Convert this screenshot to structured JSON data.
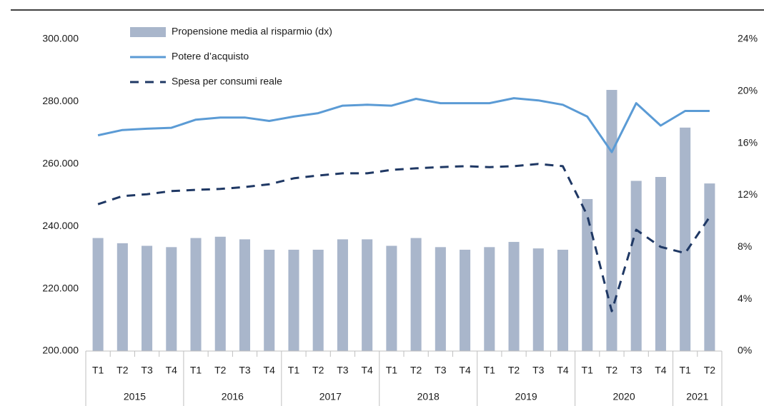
{
  "chart_data": {
    "type": "bar-line",
    "categories": [
      "T1",
      "T2",
      "T3",
      "T4",
      "T1",
      "T2",
      "T3",
      "T4",
      "T1",
      "T2",
      "T3",
      "T4",
      "T1",
      "T2",
      "T3",
      "T4",
      "T1",
      "T2",
      "T3",
      "T4",
      "T1",
      "T2",
      "T3",
      "T4",
      "T1",
      "T2"
    ],
    "groups": [
      {
        "label": "2015",
        "categories": 4
      },
      {
        "label": "2016",
        "categories": 4
      },
      {
        "label": "2017",
        "categories": 4
      },
      {
        "label": "2018",
        "categories": 4
      },
      {
        "label": "2019",
        "categories": 4
      },
      {
        "label": "2020",
        "categories": 4
      },
      {
        "label": "2021",
        "categories": 2
      }
    ],
    "ylim": [
      200000,
      300000
    ],
    "yticks": [
      {
        "value": 200000,
        "label": "200.000"
      },
      {
        "value": 220000,
        "label": "220.000"
      },
      {
        "value": 240000,
        "label": "240.000"
      },
      {
        "value": 260000,
        "label": "260.000"
      },
      {
        "value": 280000,
        "label": "280.000"
      },
      {
        "value": 300000,
        "label": "300.000"
      }
    ],
    "y2lim": [
      0,
      24
    ],
    "y2ticks": [
      {
        "value": 0,
        "label": "0%"
      },
      {
        "value": 4,
        "label": "4%"
      },
      {
        "value": 8,
        "label": "8%"
      },
      {
        "value": 12,
        "label": "12%"
      },
      {
        "value": 16,
        "label": "16%"
      },
      {
        "value": 20,
        "label": "20%"
      },
      {
        "value": 24,
        "label": "24%"
      }
    ],
    "series": [
      {
        "name": "Propensione media al risparmio (dx)",
        "type": "bar",
        "axis": "y2",
        "color": "#a9b6cb",
        "values": [
          8.7,
          8.3,
          8.1,
          8.0,
          8.7,
          8.8,
          8.6,
          7.8,
          7.8,
          7.8,
          8.6,
          8.6,
          8.1,
          8.7,
          8.0,
          7.8,
          8.0,
          8.4,
          7.9,
          7.8,
          11.7,
          20.1,
          13.1,
          13.4,
          17.2,
          12.9
        ]
      },
      {
        "name": "Potere d’acquisto",
        "type": "line",
        "color": "#5b9bd5",
        "dash": false,
        "values": [
          269200,
          270900,
          271300,
          271600,
          274200,
          274900,
          274900,
          273800,
          275200,
          276300,
          278700,
          279000,
          278700,
          280900,
          279500,
          279500,
          279500,
          281100,
          280400,
          279000,
          275200,
          263800,
          279500,
          272300,
          277000,
          277000
        ]
      },
      {
        "name": "Spesa per consumi reale",
        "type": "line",
        "color": "#1f3864",
        "dash": true,
        "values": [
          247100,
          249700,
          250300,
          251300,
          251700,
          252000,
          252600,
          253500,
          255400,
          256300,
          257000,
          257000,
          258100,
          258600,
          259000,
          259300,
          259000,
          259300,
          260000,
          259300,
          243500,
          212800,
          238900,
          233400,
          231400,
          243000
        ]
      }
    ],
    "legend": "top-left"
  }
}
